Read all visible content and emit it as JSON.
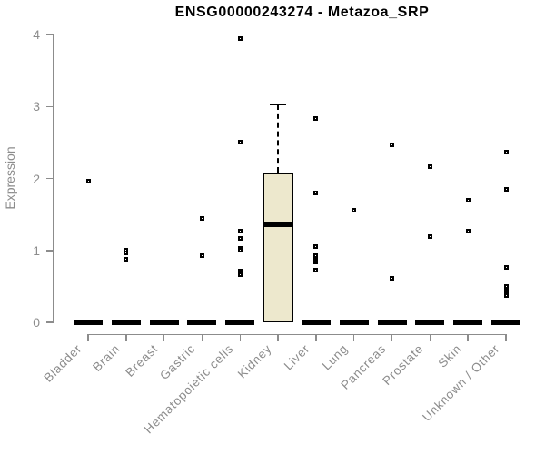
{
  "colors": {
    "background": "#FFFFFF",
    "title_text": "#000000",
    "axis": "#8C8C8C",
    "tick_text": "#8C8C8C",
    "box_fill": "#EDE8CD",
    "box_border": "#000000",
    "outlier": "#000000"
  },
  "chart_data": {
    "type": "boxplot",
    "title": "ENSG00000243274 - Metazoa_SRP",
    "ylabel": "Expression",
    "xlabel": "",
    "ylim": [
      0,
      4
    ],
    "yticks": [
      0,
      1,
      2,
      3,
      4
    ],
    "grid": false,
    "legend": false,
    "categories": [
      "Bladder",
      "Brain",
      "Breast",
      "Gastric",
      "Hematopoietic cells",
      "Kidney",
      "Liver",
      "Lung",
      "Pancreas",
      "Prostate",
      "Skin",
      "Unknown / Other"
    ],
    "boxes": [
      {
        "category": "Bladder",
        "q1": 0,
        "median": 0,
        "q3": 0,
        "whisker_low": 0,
        "whisker_high": 0,
        "outliers": [
          1.96
        ]
      },
      {
        "category": "Brain",
        "q1": 0,
        "median": 0,
        "q3": 0,
        "whisker_low": 0,
        "whisker_high": 0,
        "outliers": [
          1.0,
          0.96,
          0.88
        ]
      },
      {
        "category": "Breast",
        "q1": 0,
        "median": 0,
        "q3": 0,
        "whisker_low": 0,
        "whisker_high": 0,
        "outliers": []
      },
      {
        "category": "Gastric",
        "q1": 0,
        "median": 0,
        "q3": 0,
        "whisker_low": 0,
        "whisker_high": 0,
        "outliers": [
          1.45,
          0.93
        ]
      },
      {
        "category": "Hematopoietic cells",
        "q1": 0,
        "median": 0,
        "q3": 0,
        "whisker_low": 0,
        "whisker_high": 0,
        "outliers": [
          3.94,
          2.51,
          1.27,
          1.17,
          1.03,
          1.0,
          0.71,
          0.66
        ]
      },
      {
        "category": "Kidney",
        "q1": 0,
        "median": 1.36,
        "q3": 2.08,
        "whisker_low": 0,
        "whisker_high": 3.03,
        "outliers": []
      },
      {
        "category": "Liver",
        "q1": 0,
        "median": 0,
        "q3": 0,
        "whisker_low": 0,
        "whisker_high": 0,
        "outliers": [
          2.83,
          1.8,
          1.05,
          0.93,
          0.87,
          0.84,
          0.73
        ]
      },
      {
        "category": "Lung",
        "q1": 0,
        "median": 0,
        "q3": 0,
        "whisker_low": 0,
        "whisker_high": 0,
        "outliers": [
          1.56
        ]
      },
      {
        "category": "Pancreas",
        "q1": 0,
        "median": 0,
        "q3": 0,
        "whisker_low": 0,
        "whisker_high": 0,
        "outliers": [
          2.47,
          0.61
        ]
      },
      {
        "category": "Prostate",
        "q1": 0,
        "median": 0,
        "q3": 0,
        "whisker_low": 0,
        "whisker_high": 0,
        "outliers": [
          2.17,
          1.19
        ]
      },
      {
        "category": "Skin",
        "q1": 0,
        "median": 0,
        "q3": 0,
        "whisker_low": 0,
        "whisker_high": 0,
        "outliers": [
          1.7,
          1.27
        ]
      },
      {
        "category": "Unknown / Other",
        "q1": 0,
        "median": 0,
        "q3": 0,
        "whisker_low": 0,
        "whisker_high": 0,
        "outliers": [
          2.36,
          1.85,
          0.76,
          0.5,
          0.44,
          0.37
        ]
      }
    ]
  }
}
